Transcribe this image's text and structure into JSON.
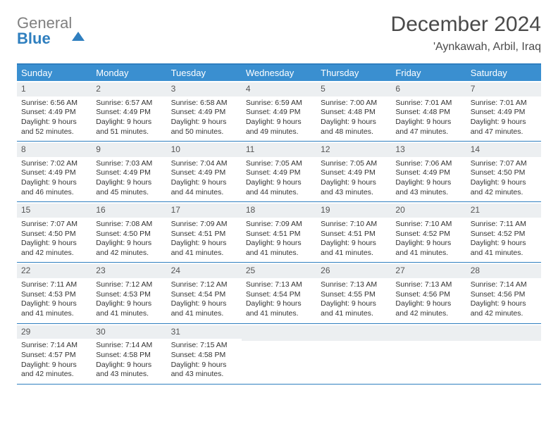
{
  "brand": {
    "part1": "General",
    "part2": "Blue"
  },
  "title": "December 2024",
  "location": "'Aynkawah, Arbil, Iraq",
  "day_names": [
    "Sunday",
    "Monday",
    "Tuesday",
    "Wednesday",
    "Thursday",
    "Friday",
    "Saturday"
  ],
  "style": {
    "accent_color": "#3a8fd0",
    "border_color": "#2f7fbf",
    "daynum_bg": "#eceff1",
    "page_bg": "#ffffff",
    "text_color": "#333333",
    "title_fontsize": 30,
    "location_fontsize": 16,
    "header_fontsize": 13,
    "cell_fontsize": 10.5,
    "columns": 7
  },
  "weeks": [
    [
      {
        "n": "1",
        "sr": "6:56 AM",
        "ss": "4:49 PM",
        "dl": "9 hours and 52 minutes."
      },
      {
        "n": "2",
        "sr": "6:57 AM",
        "ss": "4:49 PM",
        "dl": "9 hours and 51 minutes."
      },
      {
        "n": "3",
        "sr": "6:58 AM",
        "ss": "4:49 PM",
        "dl": "9 hours and 50 minutes."
      },
      {
        "n": "4",
        "sr": "6:59 AM",
        "ss": "4:49 PM",
        "dl": "9 hours and 49 minutes."
      },
      {
        "n": "5",
        "sr": "7:00 AM",
        "ss": "4:48 PM",
        "dl": "9 hours and 48 minutes."
      },
      {
        "n": "6",
        "sr": "7:01 AM",
        "ss": "4:48 PM",
        "dl": "9 hours and 47 minutes."
      },
      {
        "n": "7",
        "sr": "7:01 AM",
        "ss": "4:49 PM",
        "dl": "9 hours and 47 minutes."
      }
    ],
    [
      {
        "n": "8",
        "sr": "7:02 AM",
        "ss": "4:49 PM",
        "dl": "9 hours and 46 minutes."
      },
      {
        "n": "9",
        "sr": "7:03 AM",
        "ss": "4:49 PM",
        "dl": "9 hours and 45 minutes."
      },
      {
        "n": "10",
        "sr": "7:04 AM",
        "ss": "4:49 PM",
        "dl": "9 hours and 44 minutes."
      },
      {
        "n": "11",
        "sr": "7:05 AM",
        "ss": "4:49 PM",
        "dl": "9 hours and 44 minutes."
      },
      {
        "n": "12",
        "sr": "7:05 AM",
        "ss": "4:49 PM",
        "dl": "9 hours and 43 minutes."
      },
      {
        "n": "13",
        "sr": "7:06 AM",
        "ss": "4:49 PM",
        "dl": "9 hours and 43 minutes."
      },
      {
        "n": "14",
        "sr": "7:07 AM",
        "ss": "4:50 PM",
        "dl": "9 hours and 42 minutes."
      }
    ],
    [
      {
        "n": "15",
        "sr": "7:07 AM",
        "ss": "4:50 PM",
        "dl": "9 hours and 42 minutes."
      },
      {
        "n": "16",
        "sr": "7:08 AM",
        "ss": "4:50 PM",
        "dl": "9 hours and 42 minutes."
      },
      {
        "n": "17",
        "sr": "7:09 AM",
        "ss": "4:51 PM",
        "dl": "9 hours and 41 minutes."
      },
      {
        "n": "18",
        "sr": "7:09 AM",
        "ss": "4:51 PM",
        "dl": "9 hours and 41 minutes."
      },
      {
        "n": "19",
        "sr": "7:10 AM",
        "ss": "4:51 PM",
        "dl": "9 hours and 41 minutes."
      },
      {
        "n": "20",
        "sr": "7:10 AM",
        "ss": "4:52 PM",
        "dl": "9 hours and 41 minutes."
      },
      {
        "n": "21",
        "sr": "7:11 AM",
        "ss": "4:52 PM",
        "dl": "9 hours and 41 minutes."
      }
    ],
    [
      {
        "n": "22",
        "sr": "7:11 AM",
        "ss": "4:53 PM",
        "dl": "9 hours and 41 minutes."
      },
      {
        "n": "23",
        "sr": "7:12 AM",
        "ss": "4:53 PM",
        "dl": "9 hours and 41 minutes."
      },
      {
        "n": "24",
        "sr": "7:12 AM",
        "ss": "4:54 PM",
        "dl": "9 hours and 41 minutes."
      },
      {
        "n": "25",
        "sr": "7:13 AM",
        "ss": "4:54 PM",
        "dl": "9 hours and 41 minutes."
      },
      {
        "n": "26",
        "sr": "7:13 AM",
        "ss": "4:55 PM",
        "dl": "9 hours and 41 minutes."
      },
      {
        "n": "27",
        "sr": "7:13 AM",
        "ss": "4:56 PM",
        "dl": "9 hours and 42 minutes."
      },
      {
        "n": "28",
        "sr": "7:14 AM",
        "ss": "4:56 PM",
        "dl": "9 hours and 42 minutes."
      }
    ],
    [
      {
        "n": "29",
        "sr": "7:14 AM",
        "ss": "4:57 PM",
        "dl": "9 hours and 42 minutes."
      },
      {
        "n": "30",
        "sr": "7:14 AM",
        "ss": "4:58 PM",
        "dl": "9 hours and 43 minutes."
      },
      {
        "n": "31",
        "sr": "7:15 AM",
        "ss": "4:58 PM",
        "dl": "9 hours and 43 minutes."
      },
      null,
      null,
      null,
      null
    ]
  ],
  "labels": {
    "sunrise": "Sunrise: ",
    "sunset": "Sunset: ",
    "daylight": "Daylight: "
  }
}
